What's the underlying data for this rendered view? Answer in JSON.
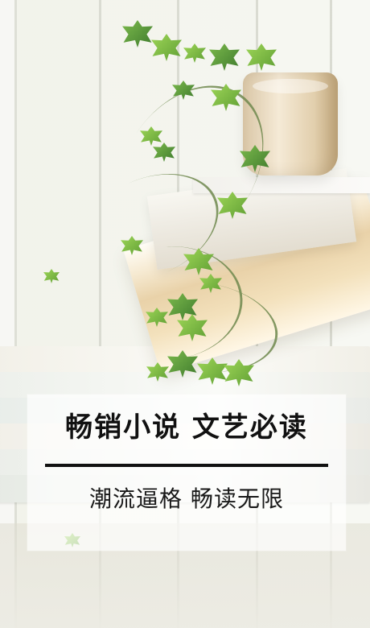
{
  "promo": {
    "headline": "畅销小说 文艺必读",
    "subline": "潮流逼格 畅读无限"
  },
  "decor": {
    "book_titles": [
      "",
      "",
      "",
      "",
      ""
    ]
  },
  "colors": {
    "text_primary": "#111111",
    "overlay": "#ffffff",
    "leaf_green": "#6aa83d",
    "wood": "#e9d2a9"
  }
}
